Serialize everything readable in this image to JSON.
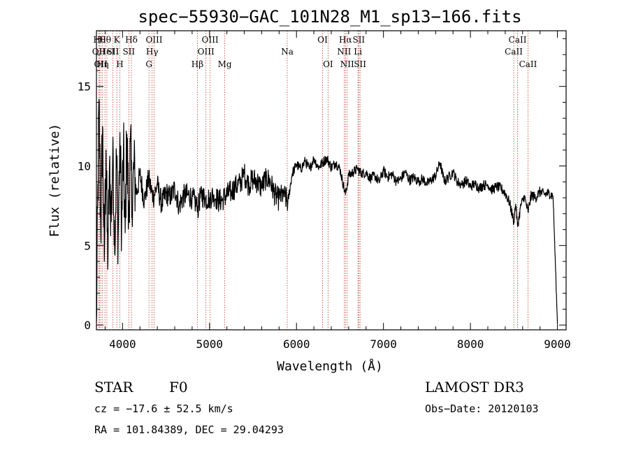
{
  "chart_data": {
    "type": "line",
    "title": "spec−55930−GAC_101N28_M1_sp13−166.fits",
    "xlabel": "Wavelength (Å)",
    "ylabel": "Flux (relative)",
    "xlim": [
      3700,
      9100
    ],
    "ylim": [
      -0.3,
      18.5
    ],
    "x_ticks": [
      4000,
      5000,
      6000,
      7000,
      8000,
      9000
    ],
    "x_tick_labels": [
      "4000",
      "5000",
      "6000",
      "7000",
      "8000",
      "9000"
    ],
    "y_ticks": [
      0,
      5,
      10,
      15
    ],
    "y_tick_labels": [
      "0",
      "5",
      "10",
      "15"
    ],
    "series": [
      {
        "name": "flux",
        "x": [
          3700,
          3730,
          3750,
          3770,
          3790,
          3810,
          3830,
          3850,
          3870,
          3890,
          3910,
          3930,
          3950,
          3970,
          3990,
          4010,
          4030,
          4050,
          4070,
          4090,
          4110,
          4130,
          4160,
          4200,
          4250,
          4300,
          4350,
          4400,
          4450,
          4500,
          4550,
          4600,
          4650,
          4700,
          4750,
          4800,
          4850,
          4861,
          4900,
          4950,
          5000,
          5050,
          5100,
          5150,
          5200,
          5250,
          5300,
          5350,
          5400,
          5450,
          5500,
          5550,
          5600,
          5650,
          5700,
          5750,
          5800,
          5850,
          5900,
          5950,
          6000,
          6050,
          6100,
          6150,
          6200,
          6250,
          6300,
          6350,
          6400,
          6450,
          6500,
          6563,
          6600,
          6650,
          6700,
          6750,
          6800,
          6850,
          6900,
          6950,
          7000,
          7050,
          7100,
          7150,
          7200,
          7250,
          7300,
          7350,
          7400,
          7450,
          7500,
          7550,
          7600,
          7650,
          7700,
          7750,
          7800,
          7850,
          7900,
          7950,
          8000,
          8050,
          8100,
          8150,
          8200,
          8250,
          8300,
          8350,
          8400,
          8450,
          8498,
          8520,
          8542,
          8580,
          8620,
          8662,
          8700,
          8750,
          8800,
          8850,
          8900,
          8950,
          9000
        ],
        "values": [
          0.2,
          14.2,
          5.5,
          12.5,
          4.0,
          11.0,
          3.5,
          10.2,
          6.5,
          11.8,
          4.5,
          10.5,
          5.5,
          12.1,
          6.2,
          11.0,
          5.8,
          12.0,
          6.5,
          11.5,
          7.0,
          9.8,
          8.2,
          9.5,
          7.8,
          9.2,
          8.0,
          8.8,
          7.6,
          8.3,
          8.0,
          8.6,
          7.5,
          8.1,
          8.2,
          8.0,
          7.6,
          7.1,
          8.3,
          7.9,
          8.0,
          8.2,
          7.8,
          7.9,
          8.2,
          8.4,
          8.7,
          8.9,
          9.5,
          8.8,
          9.2,
          9.0,
          8.6,
          9.3,
          9.0,
          8.2,
          7.9,
          8.3,
          7.7,
          9.5,
          10.1,
          9.8,
          10.3,
          9.8,
          10.5,
          9.9,
          10.2,
          10.5,
          9.9,
          10.2,
          9.8,
          8.2,
          9.4,
          9.6,
          9.8,
          9.5,
          9.6,
          9.2,
          9.4,
          9.0,
          9.7,
          9.3,
          9.5,
          9.0,
          9.2,
          9.6,
          9.1,
          9.3,
          9.0,
          9.2,
          8.9,
          9.1,
          9.4,
          10.2,
          9.0,
          9.3,
          9.6,
          9.0,
          8.8,
          9.1,
          8.7,
          8.9,
          8.6,
          8.8,
          8.8,
          8.5,
          8.7,
          8.6,
          8.3,
          7.7,
          6.5,
          7.6,
          6.2,
          7.5,
          8.1,
          7.1,
          8.2,
          8.0,
          8.4,
          8.2,
          8.3,
          8.1,
          0.1
        ]
      }
    ],
    "line_markers": [
      {
        "wavelength": 3727,
        "label": "OII",
        "row": 2
      },
      {
        "wavelength": 3734,
        "label": "Hθ",
        "row": 1
      },
      {
        "wavelength": 3750,
        "label": "OII",
        "row": 3
      },
      {
        "wavelength": 3770,
        "label": "Hη",
        "row": 3
      },
      {
        "wavelength": 3798,
        "label": "Hθ",
        "row": 1
      },
      {
        "wavelength": 3820,
        "label": "HeI",
        "row": 2
      },
      {
        "wavelength": 3889,
        "label": "SII",
        "row": 2
      },
      {
        "wavelength": 3934,
        "label": "K",
        "row": 1
      },
      {
        "wavelength": 3969,
        "label": "H",
        "row": 3
      },
      {
        "wavelength": 4072,
        "label": "SII",
        "row": 2
      },
      {
        "wavelength": 4102,
        "label": "Hδ",
        "row": 1
      },
      {
        "wavelength": 4304,
        "label": "G",
        "row": 3
      },
      {
        "wavelength": 4340,
        "label": "Hγ",
        "row": 2
      },
      {
        "wavelength": 4363,
        "label": "OIII",
        "row": 1
      },
      {
        "wavelength": 4861,
        "label": "Hβ",
        "row": 3
      },
      {
        "wavelength": 4959,
        "label": "OIII",
        "row": 2
      },
      {
        "wavelength": 5007,
        "label": "OIII",
        "row": 1
      },
      {
        "wavelength": 5175,
        "label": "Mg",
        "row": 3
      },
      {
        "wavelength": 5894,
        "label": "Na",
        "row": 2
      },
      {
        "wavelength": 6300,
        "label": "OI",
        "row": 1
      },
      {
        "wavelength": 6363,
        "label": "OI",
        "row": 3
      },
      {
        "wavelength": 6548,
        "label": "NII",
        "row": 2
      },
      {
        "wavelength": 6563,
        "label": "Hα",
        "row": 1
      },
      {
        "wavelength": 6583,
        "label": "NII",
        "row": 3
      },
      {
        "wavelength": 6707,
        "label": "Li",
        "row": 2
      },
      {
        "wavelength": 6716,
        "label": "SII",
        "row": 1
      },
      {
        "wavelength": 6731,
        "label": "SII",
        "row": 3
      },
      {
        "wavelength": 8498,
        "label": "CaII",
        "row": 2
      },
      {
        "wavelength": 8542,
        "label": "CaII",
        "row": 1
      },
      {
        "wavelength": 8662,
        "label": "CaII",
        "row": 3
      }
    ]
  },
  "info": {
    "class": "STAR",
    "subclass": "F0",
    "survey": "LAMOST DR3",
    "cz": "cz = −17.6 ± 52.5 km/s",
    "obs_date": "Obs−Date: 20120103",
    "radec": "RA = 101.84389, DEC =  29.04293"
  },
  "colors": {
    "line_marker": "#c0392b",
    "spectrum": "#000000"
  }
}
